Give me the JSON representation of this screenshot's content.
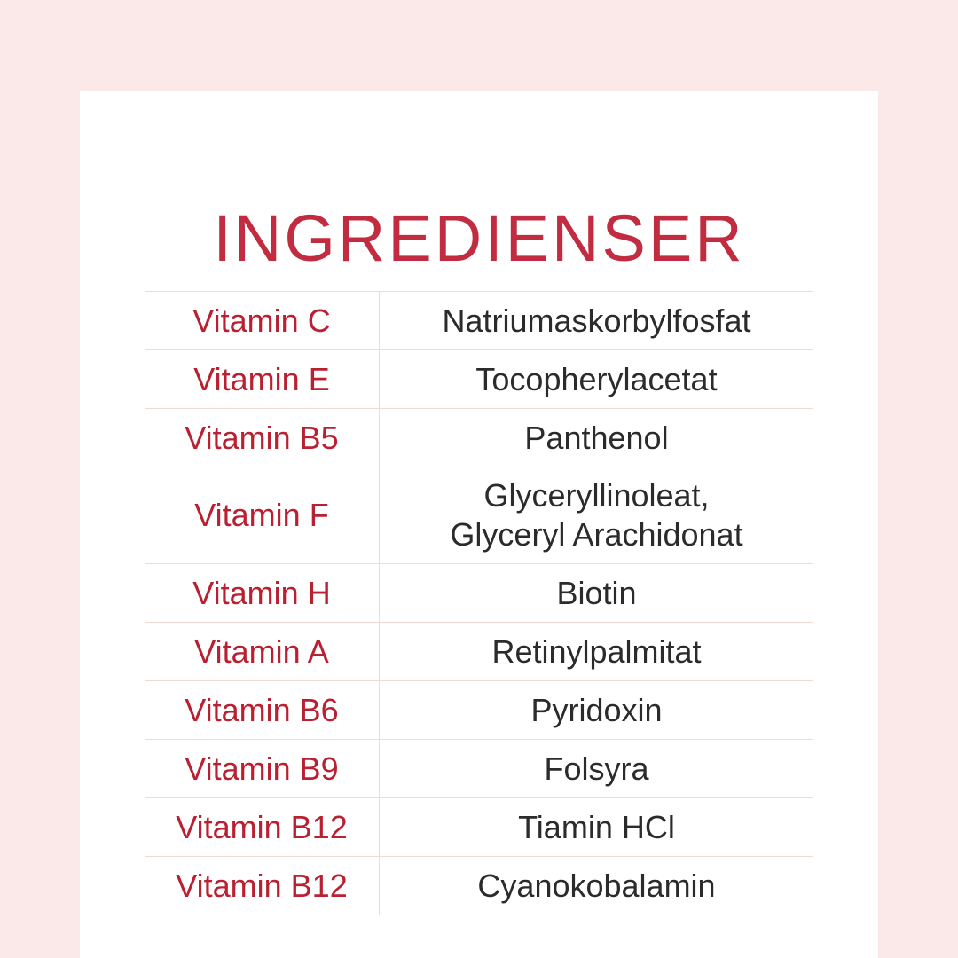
{
  "theme": {
    "background_color": "#fbe8e9",
    "card_color": "#ffffff",
    "title_color": "#c22c41",
    "label_color": "#b92031",
    "value_color": "#2b2b2b",
    "divider_color": "#f3d8d8"
  },
  "title": "INGREDIENSER",
  "table": {
    "rows": [
      {
        "label": "Vitamin C",
        "value": "Natriumaskorbylfosfat"
      },
      {
        "label": "Vitamin E",
        "value": "Tocopherylacetat"
      },
      {
        "label": "Vitamin B5",
        "value": "Panthenol"
      },
      {
        "label": "Vitamin F",
        "value": "Glyceryllinoleat,\nGlyceryl Arachidonat"
      },
      {
        "label": "Vitamin H",
        "value": "Biotin"
      },
      {
        "label": "Vitamin A",
        "value": "Retinylpalmitat"
      },
      {
        "label": "Vitamin B6",
        "value": "Pyridoxin"
      },
      {
        "label": "Vitamin B9",
        "value": "Folsyra"
      },
      {
        "label": "Vitamin B12",
        "value": "Tiamin HCl"
      },
      {
        "label": "Vitamin B12",
        "value": "Cyanokobalamin"
      }
    ]
  }
}
